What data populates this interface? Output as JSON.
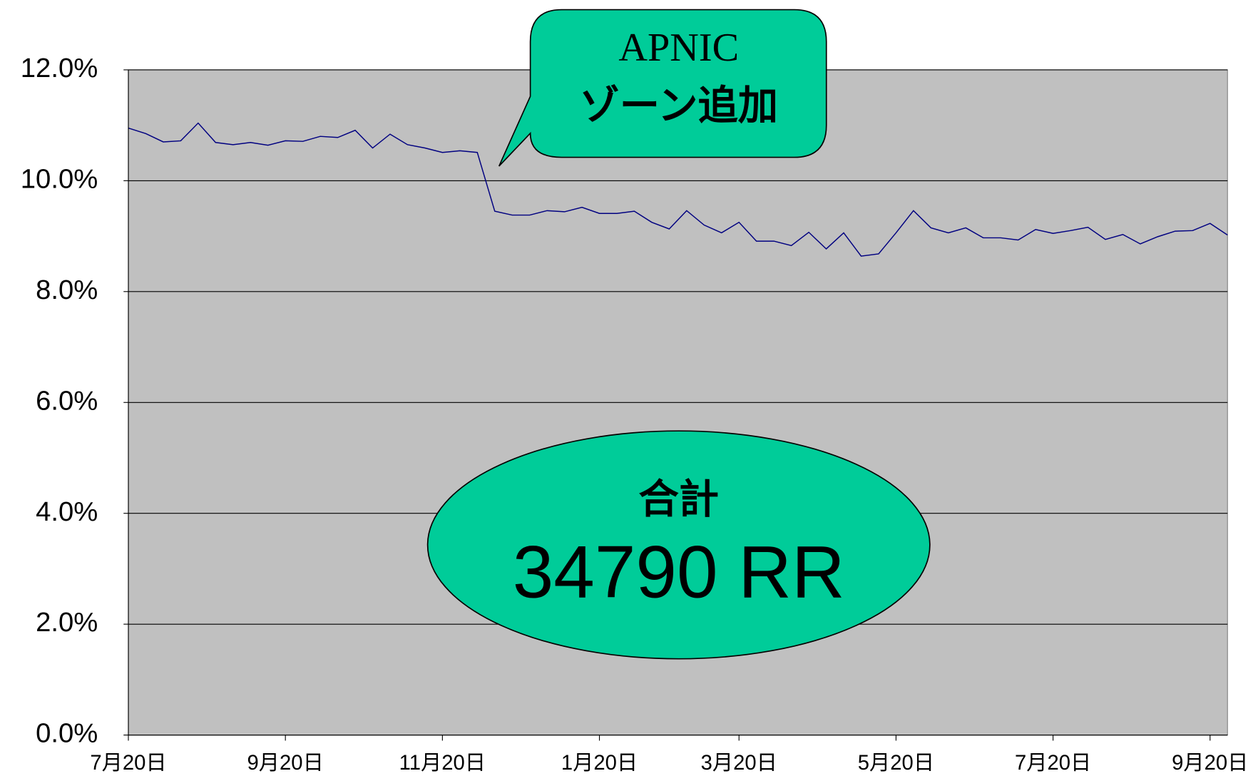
{
  "chart_data": {
    "type": "line",
    "categories": [
      "7月20日",
      null,
      null,
      null,
      null,
      null,
      null,
      null,
      null,
      "9月20日",
      null,
      null,
      null,
      null,
      null,
      null,
      null,
      null,
      "11月20日",
      null,
      null,
      null,
      null,
      null,
      null,
      null,
      null,
      "1月20日",
      null,
      null,
      null,
      null,
      null,
      null,
      null,
      "3月20日",
      null,
      null,
      null,
      null,
      null,
      null,
      null,
      null,
      "5月20日",
      null,
      null,
      null,
      null,
      null,
      null,
      null,
      null,
      "7月20日",
      null,
      null,
      null,
      null,
      null,
      null,
      null,
      null,
      "9月20日",
      null
    ],
    "series": [
      {
        "color": "#000080",
        "values": [
          10.95,
          10.85,
          10.7,
          10.72,
          11.04,
          10.69,
          10.65,
          10.69,
          10.64,
          10.72,
          10.71,
          10.8,
          10.78,
          10.91,
          10.59,
          10.84,
          10.65,
          10.59,
          10.51,
          10.54,
          10.51,
          9.45,
          9.38,
          9.38,
          9.46,
          9.44,
          9.52,
          9.41,
          9.41,
          9.45,
          9.25,
          9.13,
          9.46,
          9.2,
          9.06,
          9.25,
          8.91,
          8.91,
          8.83,
          9.07,
          8.77,
          9.06,
          8.64,
          8.68,
          9.06,
          9.46,
          9.15,
          9.06,
          9.15,
          8.97,
          8.97,
          8.93,
          9.12,
          9.05,
          9.1,
          9.16,
          8.94,
          9.03,
          8.86,
          8.99,
          9.09,
          9.1,
          9.23,
          9.02
        ]
      }
    ],
    "ylim": [
      0,
      12
    ],
    "yticks": [
      {
        "value": 0,
        "label": "0.0%"
      },
      {
        "value": 2,
        "label": "2.0%"
      },
      {
        "value": 4,
        "label": "4.0%"
      },
      {
        "value": 6,
        "label": "6.0%"
      },
      {
        "value": 8,
        "label": "8.0%"
      },
      {
        "value": 10,
        "label": "10.0%"
      },
      {
        "value": 12,
        "label": "12.0%"
      }
    ],
    "grid": true,
    "annotations": [
      {
        "lines": [
          "APNIC",
          "ゾーン追加"
        ],
        "color": "#00cc99"
      },
      {
        "lines": [
          "合計",
          "34790 RR"
        ],
        "color": "#00cc99",
        "highlight_color": "#ff0000"
      }
    ]
  }
}
